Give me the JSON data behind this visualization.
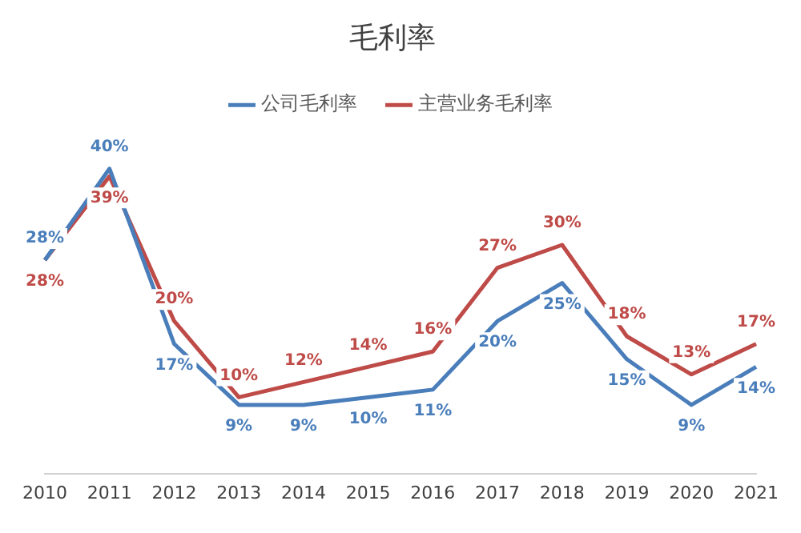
{
  "chart_data": {
    "type": "line",
    "title": "毛利率",
    "categories": [
      "2010",
      "2011",
      "2012",
      "2013",
      "2014",
      "2015",
      "2016",
      "2017",
      "2018",
      "2019",
      "2020",
      "2021"
    ],
    "series": [
      {
        "name": "公司毛利率",
        "color": "#4a7ebb",
        "values": [
          28,
          40,
          17,
          9,
          9,
          10,
          11,
          20,
          25,
          15,
          9,
          14
        ],
        "value_labels": [
          "28%",
          "40%",
          "17%",
          "9%",
          "9%",
          "10%",
          "11%",
          "20%",
          "25%",
          "15%",
          "9%",
          "14%"
        ]
      },
      {
        "name": "主营业务毛利率",
        "color": "#be4b48",
        "values": [
          28,
          39,
          20,
          10,
          12,
          14,
          16,
          27,
          30,
          18,
          13,
          17
        ],
        "value_labels": [
          "28%",
          "39%",
          "20%",
          "10%",
          "12%",
          "14%",
          "16%",
          "27%",
          "30%",
          "18%",
          "13%",
          "17%"
        ]
      }
    ],
    "legend": "top",
    "grid": false,
    "marker": "none"
  }
}
